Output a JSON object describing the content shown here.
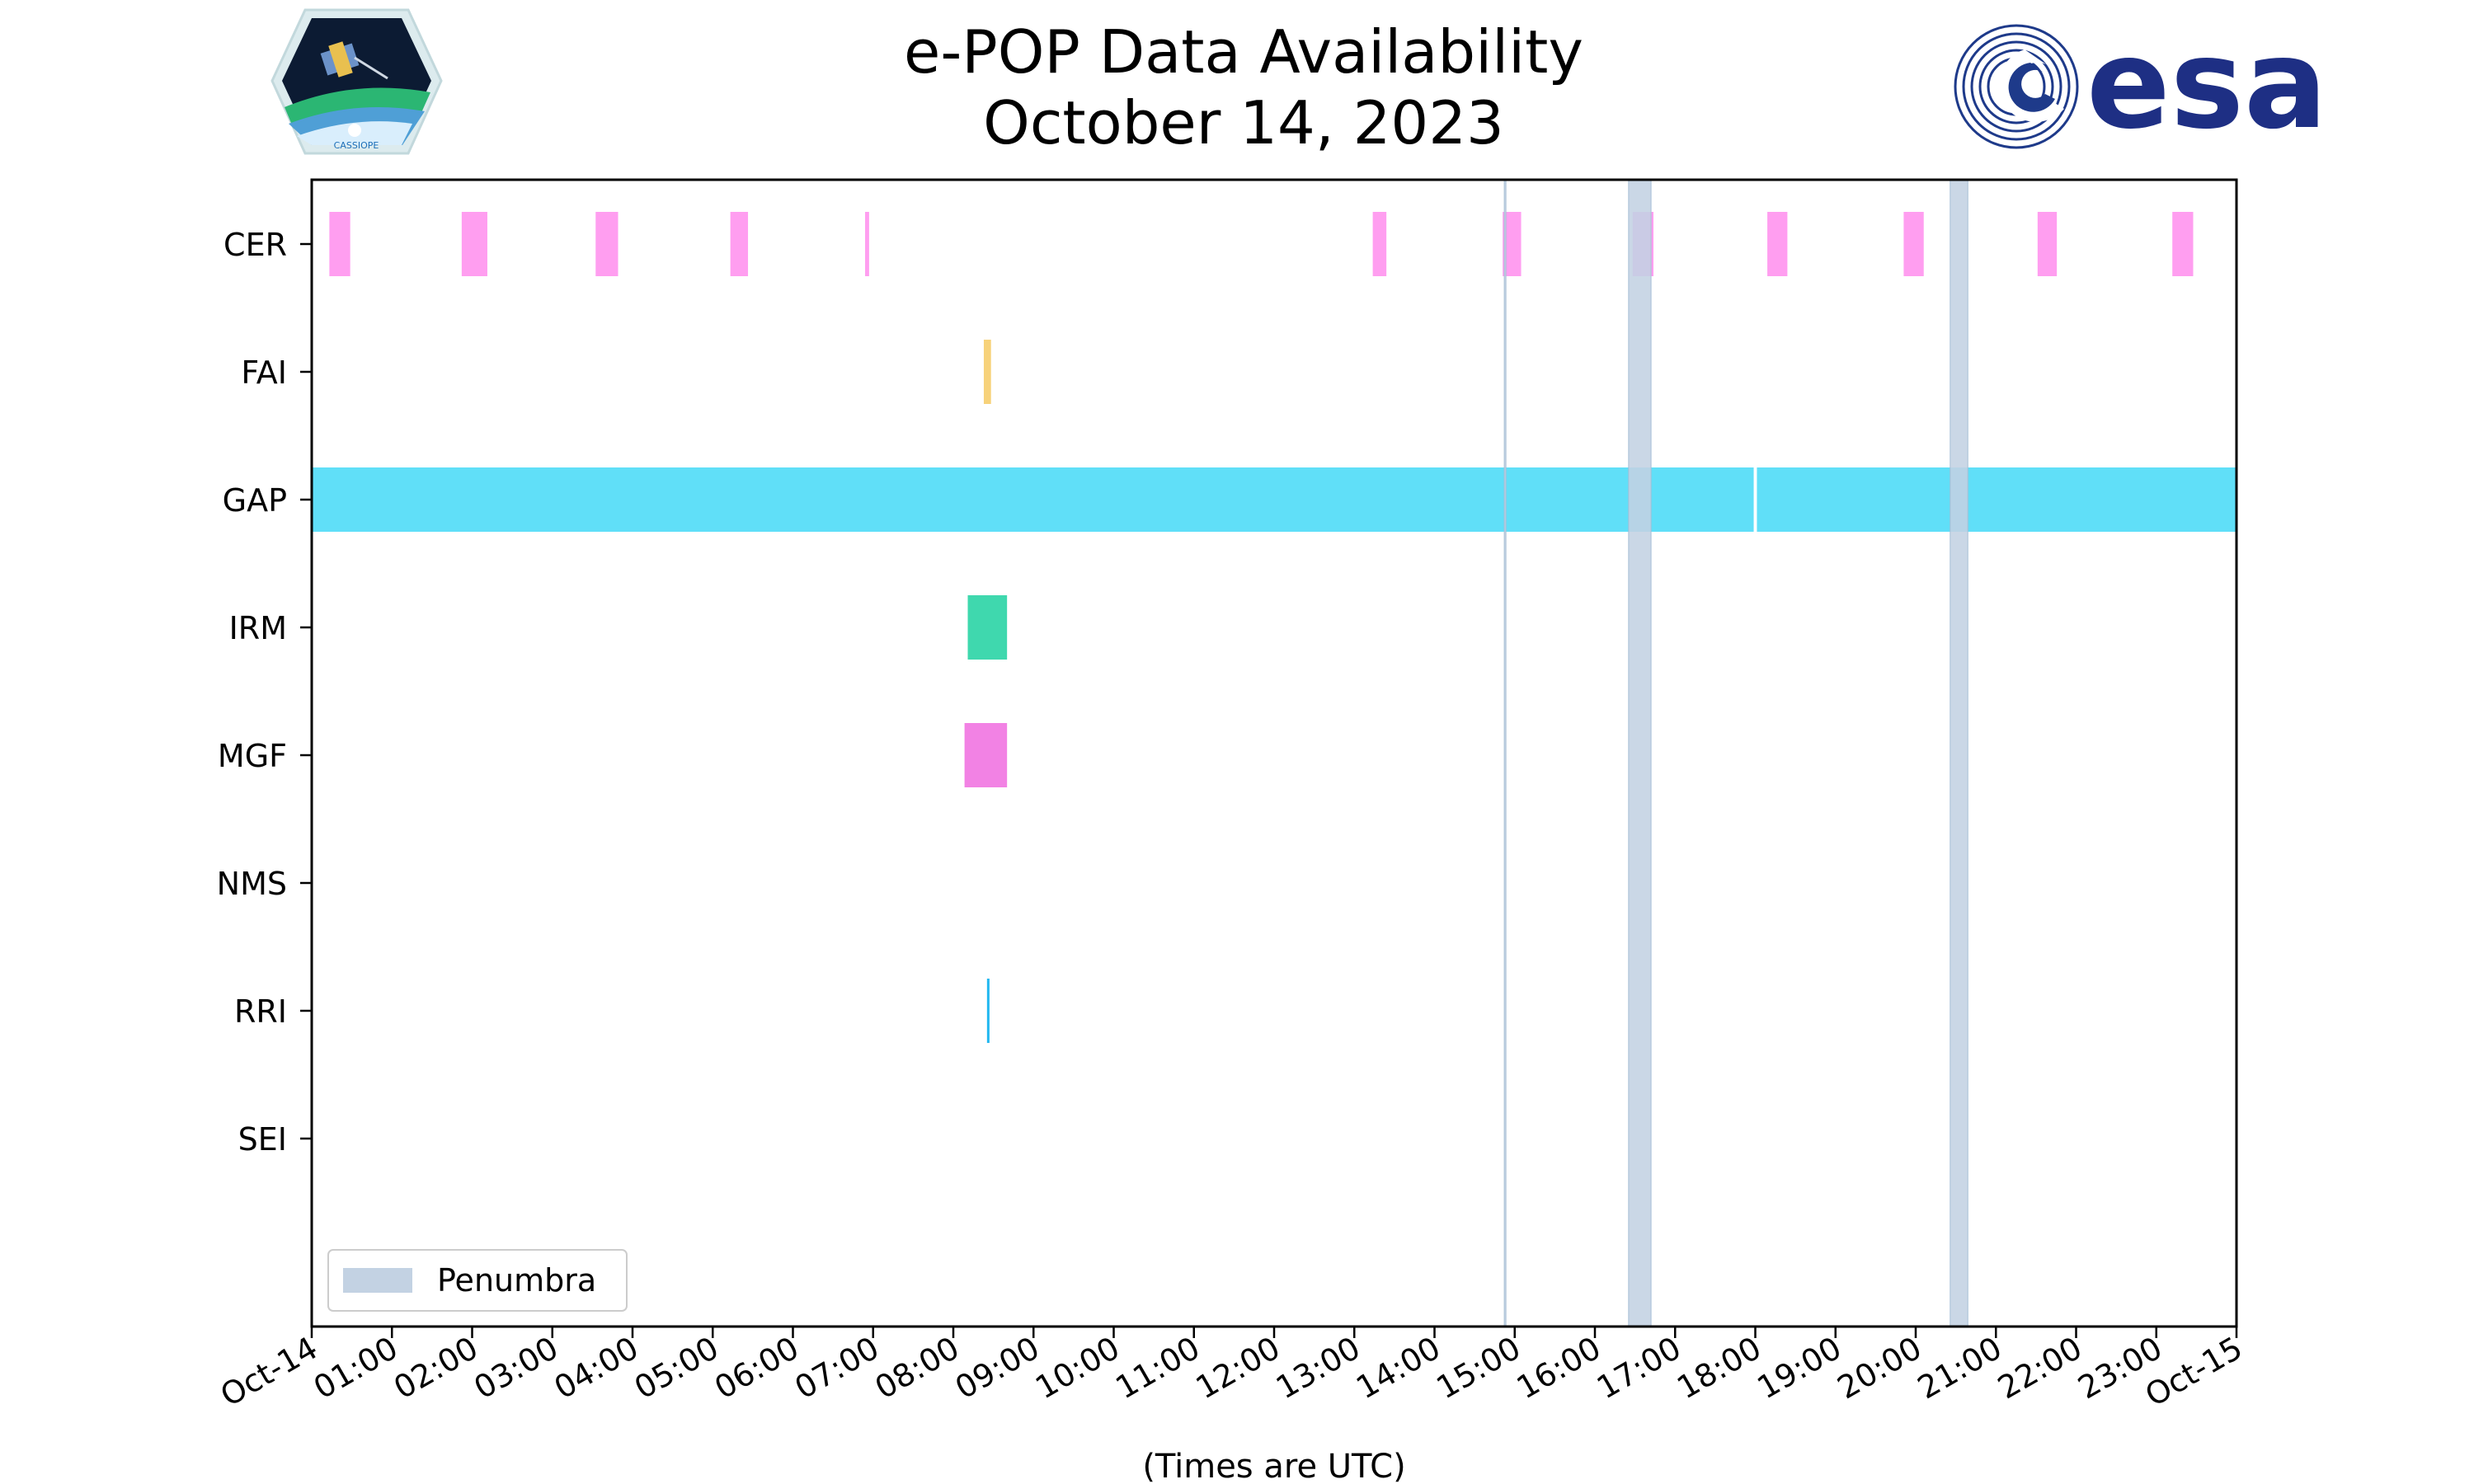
{
  "chart_data": {
    "type": "timeline",
    "title": "e-POP Data Availability",
    "subtitle": "October 14, 2023",
    "xlabel": "(Times are UTC)",
    "x_unit": "hours",
    "xlim": [
      0,
      24
    ],
    "x_ticks": [
      "Oct-14",
      "01:00",
      "02:00",
      "03:00",
      "04:00",
      "05:00",
      "06:00",
      "07:00",
      "08:00",
      "09:00",
      "10:00",
      "11:00",
      "12:00",
      "13:00",
      "14:00",
      "15:00",
      "16:00",
      "17:00",
      "18:00",
      "19:00",
      "20:00",
      "21:00",
      "22:00",
      "23:00",
      "Oct-15"
    ],
    "instruments": [
      "CER",
      "FAI",
      "GAP",
      "IRM",
      "MGF",
      "NMS",
      "RRI",
      "SEI"
    ],
    "colors": {
      "CER": "#ff9ef0",
      "FAI": "#f7d27a",
      "GAP": "#60dff8",
      "IRM": "#3fd8ae",
      "MGF": "#f282e4",
      "RRI": "#22b8f0",
      "penumbra": "#c3d2e3",
      "penumbra_edge": "#a7bfd6"
    },
    "availability": [
      {
        "instrument": "CER",
        "intervals": [
          [
            0.22,
            0.48
          ],
          [
            1.87,
            2.19
          ],
          [
            3.54,
            3.82
          ],
          [
            5.22,
            5.44
          ],
          [
            6.9,
            6.95
          ],
          [
            13.23,
            13.4
          ],
          [
            14.85,
            15.08
          ],
          [
            16.47,
            16.73
          ],
          [
            18.15,
            18.4
          ],
          [
            19.85,
            20.1
          ],
          [
            21.52,
            21.76
          ],
          [
            23.2,
            23.46
          ]
        ]
      },
      {
        "instrument": "FAI",
        "intervals": [
          [
            8.38,
            8.47
          ]
        ]
      },
      {
        "instrument": "GAP",
        "intervals": [
          [
            0.0,
            17.98
          ],
          [
            18.02,
            24.0
          ]
        ]
      },
      {
        "instrument": "IRM",
        "intervals": [
          [
            8.18,
            8.67
          ]
        ]
      },
      {
        "instrument": "MGF",
        "intervals": [
          [
            8.14,
            8.67
          ]
        ]
      },
      {
        "instrument": "NMS",
        "intervals": []
      },
      {
        "instrument": "RRI",
        "intervals": [
          [
            8.42,
            8.45
          ]
        ]
      },
      {
        "instrument": "SEI",
        "intervals": []
      }
    ],
    "penumbra": [
      [
        14.87,
        14.89
      ],
      [
        16.42,
        16.7
      ],
      [
        20.43,
        20.65
      ]
    ],
    "legend": {
      "entries": [
        "Penumbra"
      ],
      "position": "lower-left"
    }
  },
  "logos": {
    "esa": "esa",
    "cassiope": "CASSIOPE"
  }
}
